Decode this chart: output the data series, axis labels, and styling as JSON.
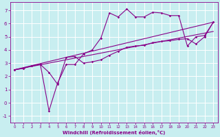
{
  "xlabel": "Windchill (Refroidissement éolien,°C)",
  "bg_color": "#c8eef0",
  "line_color": "#880088",
  "grid_color": "#ffffff",
  "xlim": [
    -0.5,
    23.5
  ],
  "ylim": [
    -1.5,
    7.6
  ],
  "xticks": [
    0,
    1,
    2,
    3,
    4,
    5,
    6,
    7,
    8,
    9,
    10,
    11,
    12,
    13,
    14,
    15,
    16,
    17,
    18,
    19,
    20,
    21,
    22,
    23
  ],
  "yticks": [
    -1,
    0,
    1,
    2,
    3,
    4,
    5,
    6,
    7
  ],
  "series_upper_x": [
    0,
    1,
    2,
    3,
    4,
    5,
    6,
    7,
    8,
    9,
    10,
    11,
    12,
    13,
    14,
    15,
    16,
    17,
    18,
    19,
    20,
    21,
    22,
    23
  ],
  "series_upper_y": [
    2.5,
    2.6,
    2.8,
    2.9,
    -0.6,
    1.5,
    2.9,
    2.9,
    3.7,
    4.0,
    4.9,
    6.8,
    6.5,
    7.1,
    6.5,
    6.5,
    6.85,
    6.8,
    6.6,
    6.6,
    4.3,
    5.0,
    5.1,
    6.1
  ],
  "series_lower_x": [
    0,
    1,
    2,
    3,
    4,
    5,
    6,
    7,
    8,
    9,
    10,
    11,
    12,
    13,
    14,
    15,
    16,
    17,
    18,
    19,
    20,
    21,
    22,
    23
  ],
  "series_lower_y": [
    2.5,
    2.6,
    2.8,
    2.9,
    2.3,
    1.4,
    3.45,
    3.5,
    3.0,
    3.1,
    3.25,
    3.6,
    3.9,
    4.2,
    4.3,
    4.35,
    4.55,
    4.65,
    4.7,
    4.8,
    4.85,
    4.45,
    5.0,
    6.1
  ],
  "series_line1_x": [
    0,
    23
  ],
  "series_line1_y": [
    2.5,
    6.1
  ],
  "series_line2_x": [
    0,
    23
  ],
  "series_line2_y": [
    2.5,
    5.4
  ]
}
